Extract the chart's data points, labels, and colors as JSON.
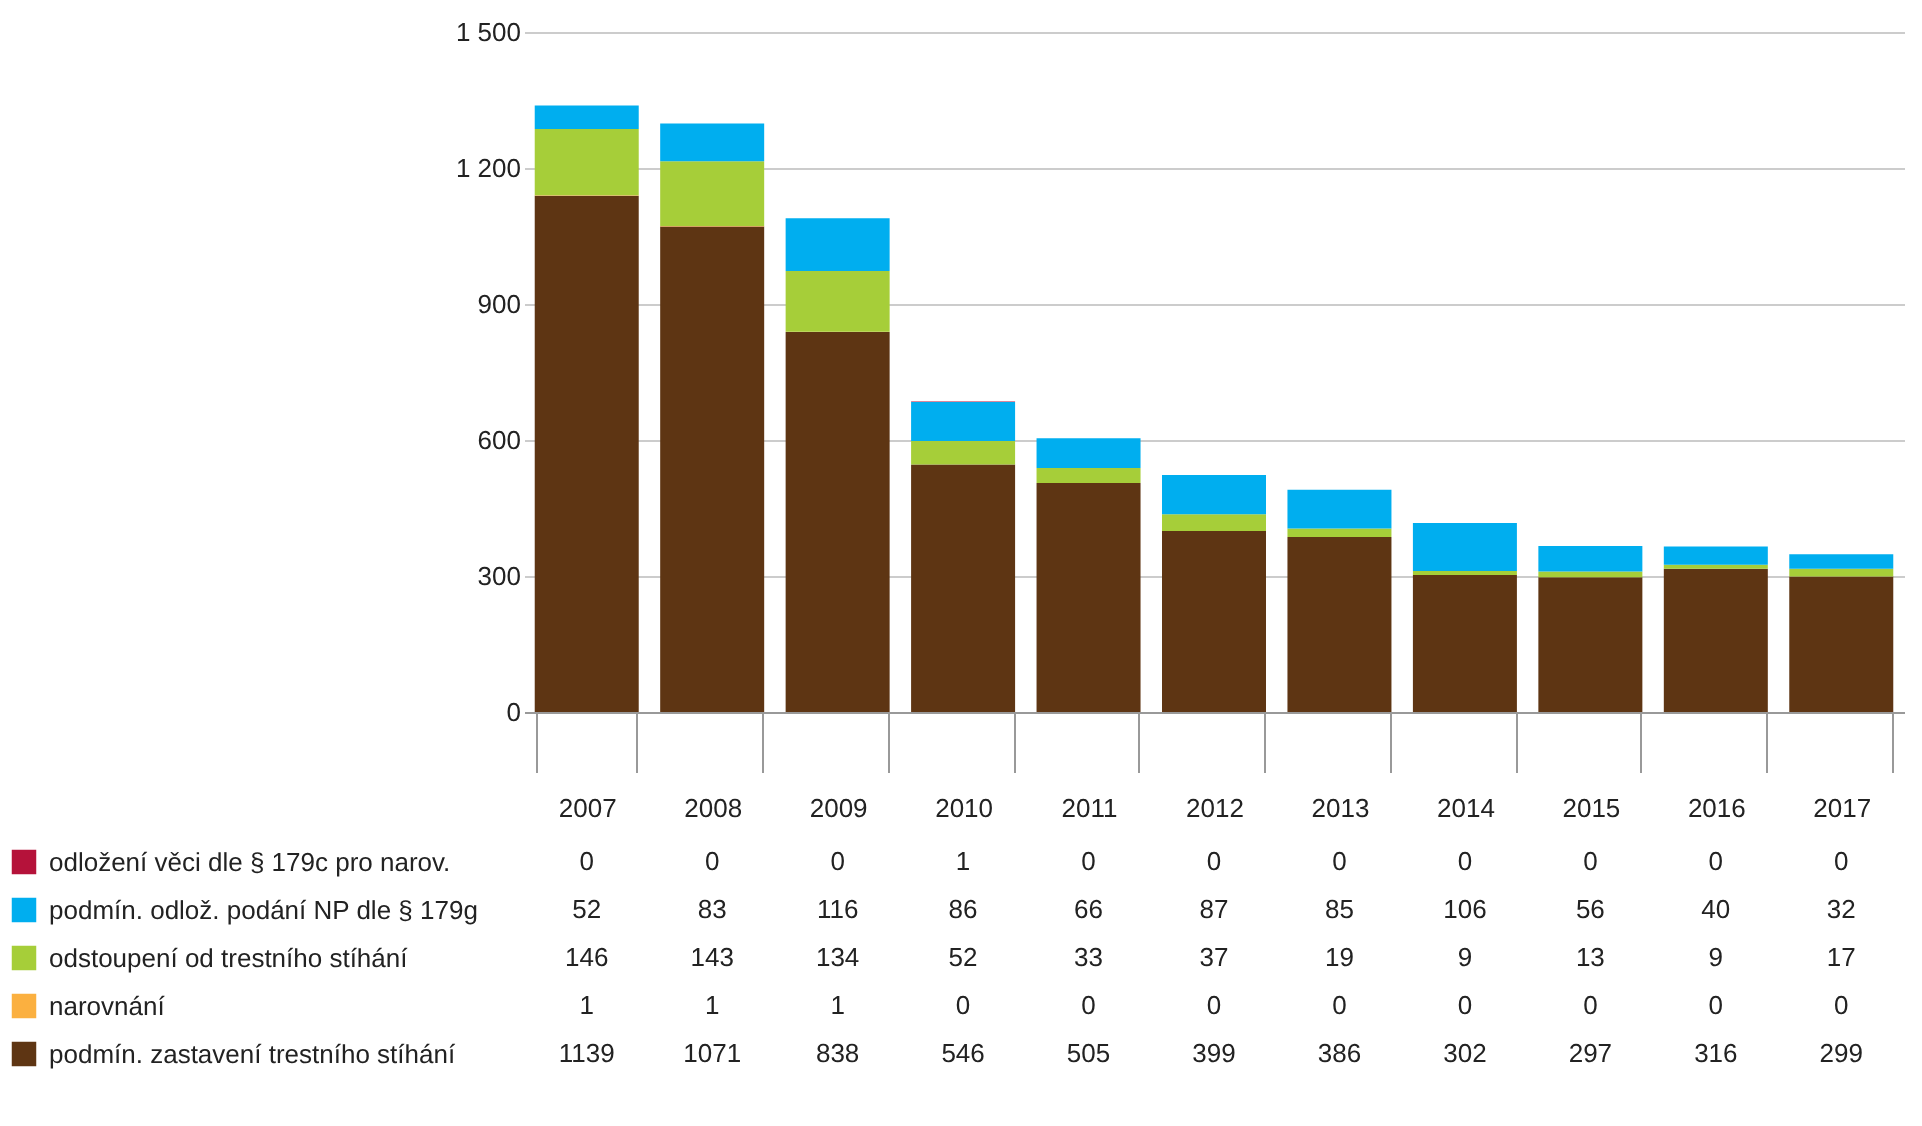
{
  "chart_data": {
    "type": "bar",
    "stacked": true,
    "categories": [
      "2007",
      "2008",
      "2009",
      "2010",
      "2011",
      "2012",
      "2013",
      "2014",
      "2015",
      "2016",
      "2017"
    ],
    "series": [
      {
        "name": "podmín. zastavení trestního stíhání",
        "color": "#5e3513",
        "values": [
          1139,
          1071,
          838,
          546,
          505,
          399,
          386,
          302,
          297,
          316,
          299
        ]
      },
      {
        "name": "narovnání",
        "color": "#fbb040",
        "values": [
          1,
          1,
          1,
          0,
          0,
          0,
          0,
          0,
          0,
          0,
          0
        ]
      },
      {
        "name": "odstoupení od trestního stíhání",
        "color": "#a6ce39",
        "values": [
          146,
          143,
          134,
          52,
          33,
          37,
          19,
          9,
          13,
          9,
          17
        ]
      },
      {
        "name": "podmín. odlož. podání NP dle § 179g",
        "color": "#00aeef",
        "values": [
          52,
          83,
          116,
          86,
          66,
          87,
          85,
          106,
          56,
          40,
          32
        ]
      },
      {
        "name": "odložení věci dle § 179c pro narov.",
        "color": "#b5123a",
        "values": [
          0,
          0,
          0,
          1,
          0,
          0,
          0,
          0,
          0,
          0,
          0
        ]
      }
    ],
    "ylim": [
      0,
      1500
    ],
    "yticks": [
      0,
      300,
      600,
      900,
      {
        "value": 1200,
        "label": "1 200"
      },
      {
        "value": 1500,
        "label": "1 500"
      }
    ],
    "grid": "y",
    "legend": "bottom left",
    "data_labels": true
  }
}
